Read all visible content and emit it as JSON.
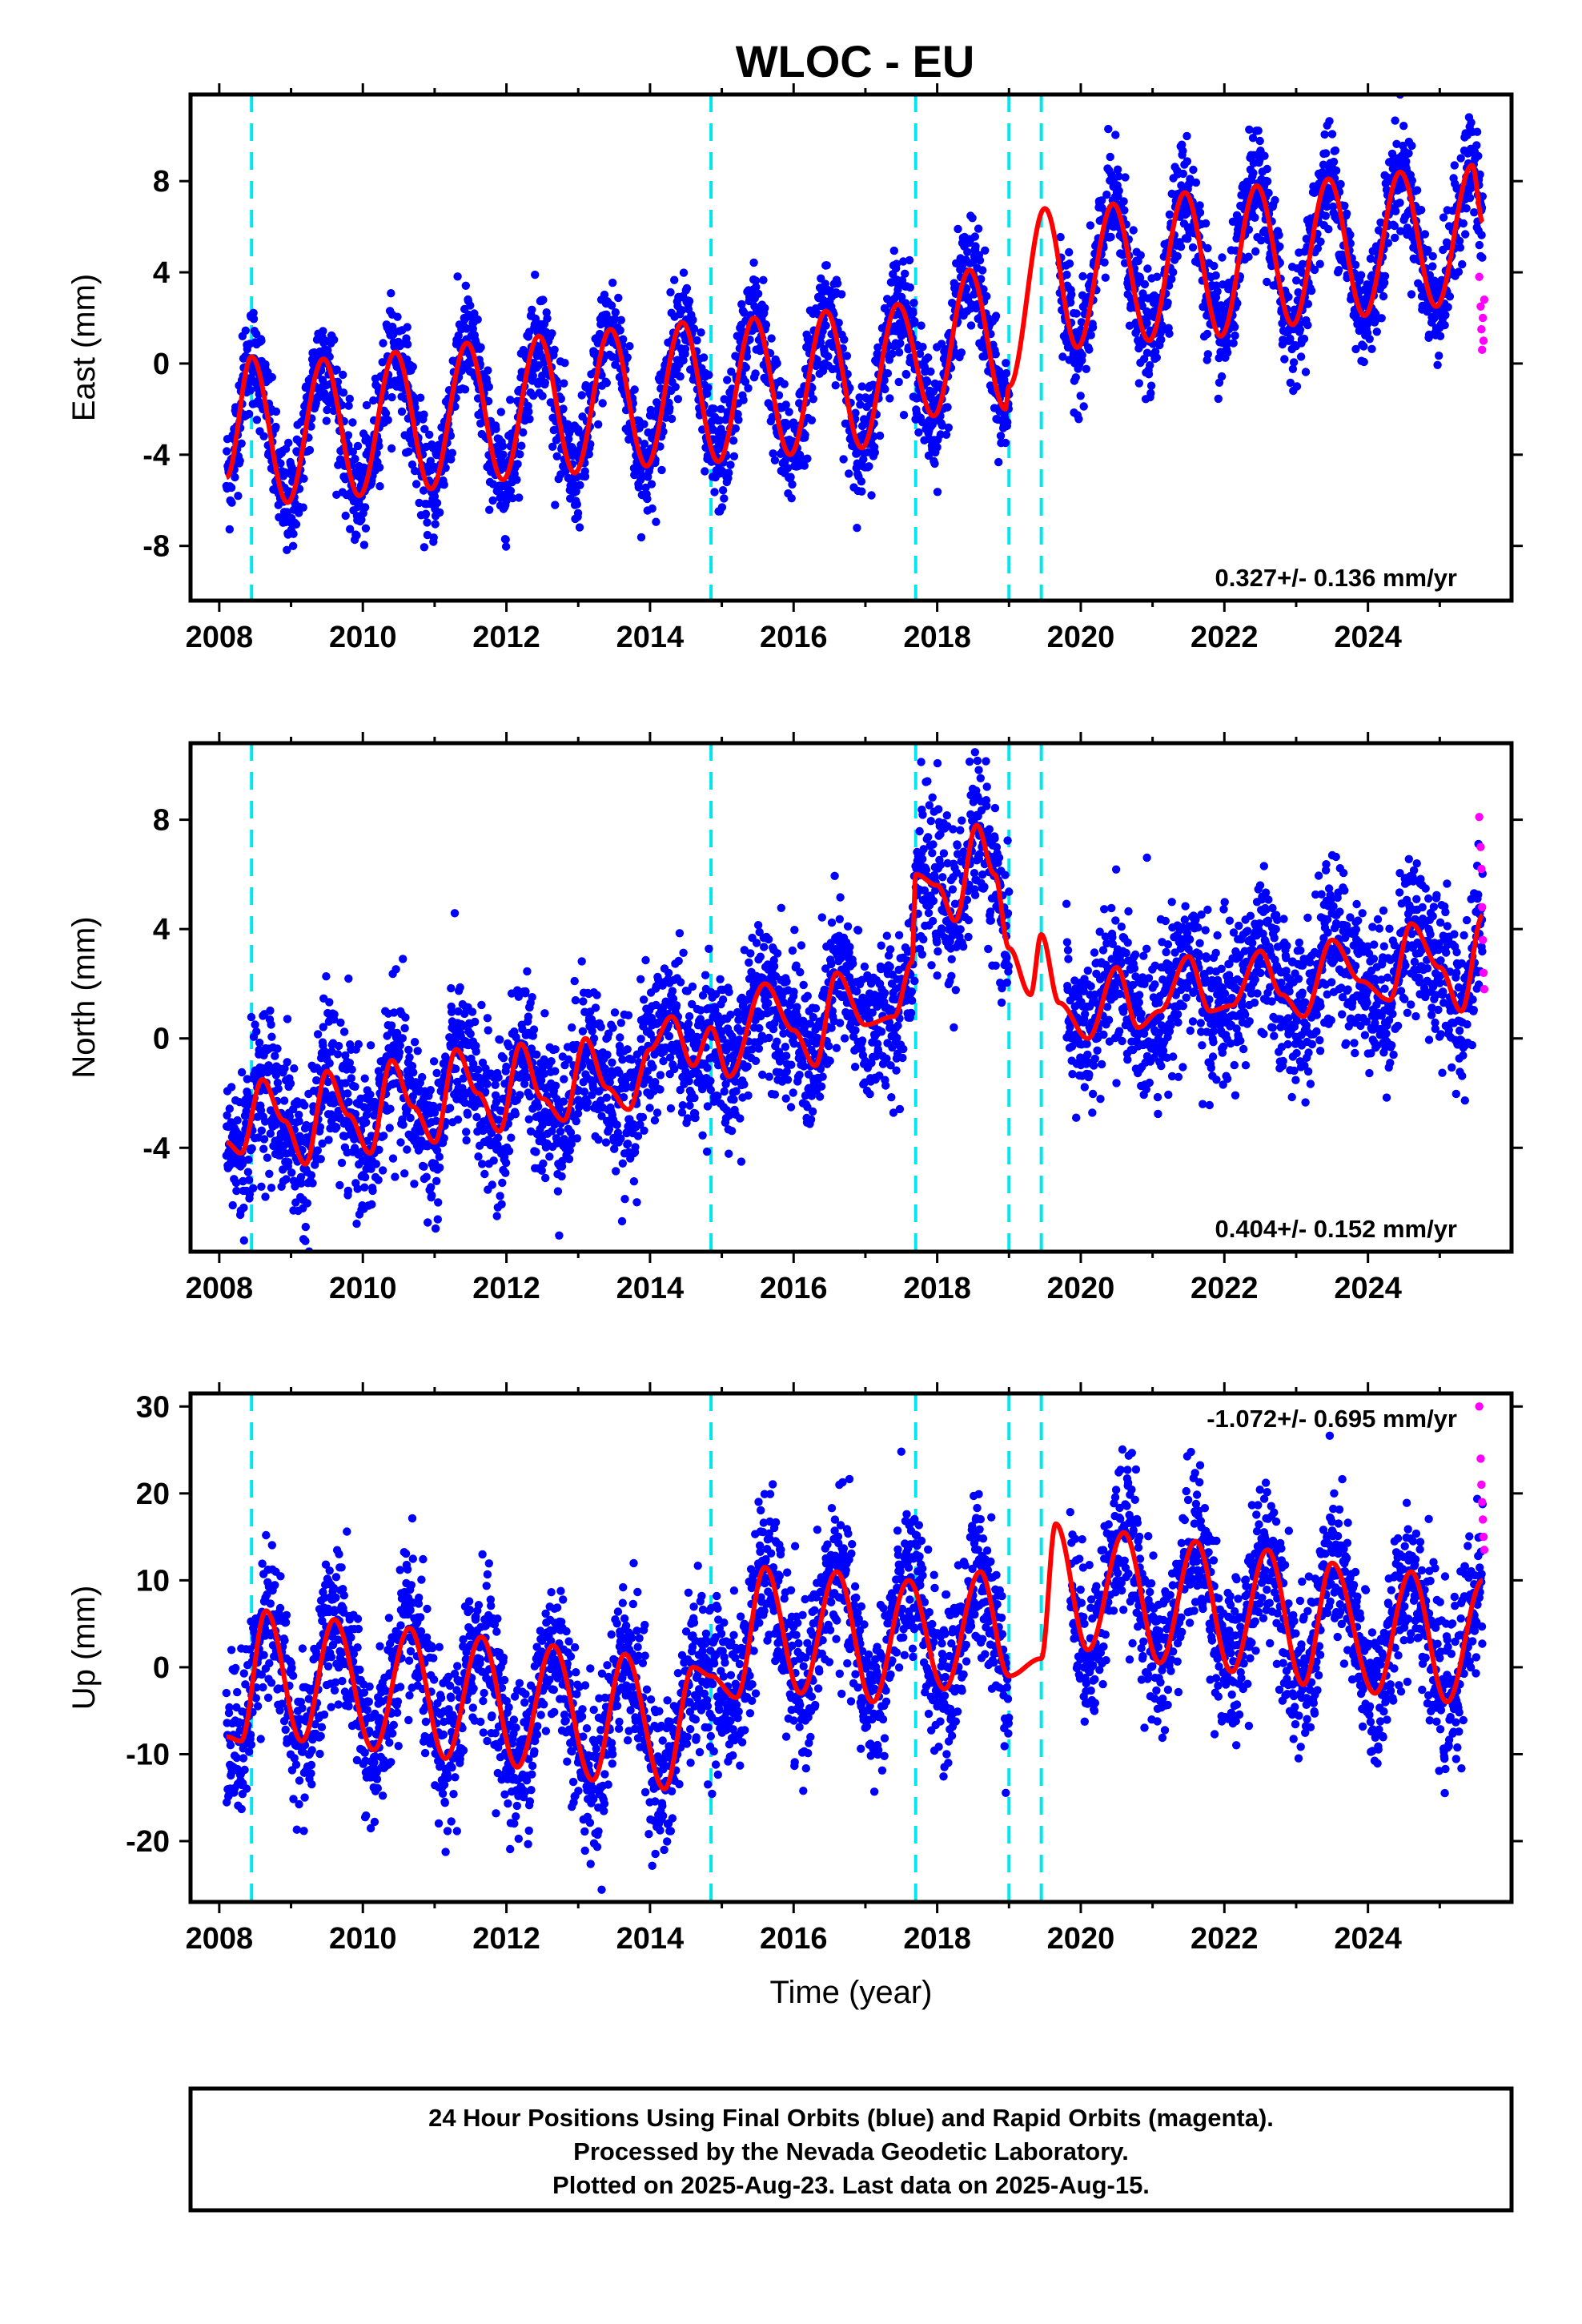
{
  "title": "WLOC - EU",
  "colors": {
    "final_orbits": "#0000ff",
    "rapid_orbits": "#ff00ff",
    "model": "#ff0000",
    "events": "#00e5ee",
    "frame": "#000000"
  },
  "footer": {
    "line1": "24 Hour Positions Using Final Orbits (blue) and Rapid Orbits (magenta).",
    "line2": "Processed by the Nevada Geodetic Laboratory.",
    "line3": "Plotted on 2025-Aug-23. Last data on 2025-Aug-15."
  },
  "chart_data": [
    {
      "type": "scatter",
      "id": "east",
      "ylabel": "East (mm)",
      "xlabel": "",
      "xlim": [
        2007.6,
        2026.0
      ],
      "ylim": [
        -10.4,
        11.8
      ],
      "xticks": [
        2008,
        2010,
        2012,
        2014,
        2016,
        2018,
        2020,
        2022,
        2024
      ],
      "yticks": [
        -8,
        -4,
        0,
        4,
        8
      ],
      "rate_text": "0.327+/- 0.136 mm/yr",
      "rate_position": "bottom-right",
      "event_lines": [
        2008.45,
        2014.85,
        2017.7,
        2019.0,
        2019.45
      ],
      "data_gap": [
        2019.0,
        2019.7
      ],
      "model_trend": {
        "offset": -2.8,
        "rate": 0.33,
        "start": 2008.0
      },
      "seasonal": {
        "amplitude": 3.4,
        "peak_phase": 0.45,
        "scatter": 1.2
      },
      "model_points": {
        "x": [
          2008.1,
          2008.45,
          2008.95,
          2009.45,
          2009.95,
          2010.45,
          2010.95,
          2011.45,
          2011.95,
          2012.45,
          2012.95,
          2013.45,
          2013.95,
          2014.45,
          2014.95,
          2015.45,
          2015.95,
          2016.45,
          2016.95,
          2017.45,
          2017.95,
          2018.45,
          2018.95,
          2019.0,
          2019.5,
          2019.95,
          2020.45,
          2020.95,
          2021.45,
          2021.95,
          2022.45,
          2022.95,
          2023.45,
          2023.95,
          2024.45,
          2024.95,
          2025.45,
          2025.6
        ],
        "y": [
          -5.0,
          0.3,
          -6.1,
          0.2,
          -5.8,
          0.5,
          -5.5,
          0.9,
          -5.1,
          1.2,
          -4.8,
          1.5,
          -4.5,
          1.8,
          -4.3,
          2.0,
          -4.0,
          2.3,
          -3.7,
          2.6,
          -2.3,
          4.1,
          -2.0,
          -1.0,
          6.8,
          0.7,
          7.0,
          1.0,
          7.5,
          1.2,
          7.8,
          1.7,
          8.1,
          2.1,
          8.4,
          2.5,
          8.7,
          6.2
        ]
      },
      "rapid_points": {
        "x": [
          2025.55,
          2025.57,
          2025.58,
          2025.59,
          2025.6,
          2025.61,
          2025.62
        ],
        "y": [
          3.8,
          2.5,
          1.5,
          0.6,
          2.0,
          1.0,
          2.8
        ]
      }
    },
    {
      "type": "scatter",
      "id": "north",
      "ylabel": "North (mm)",
      "xlabel": "",
      "xlim": [
        2007.6,
        2026.0
      ],
      "ylim": [
        -7.8,
        10.8
      ],
      "xticks": [
        2008,
        2010,
        2012,
        2014,
        2016,
        2018,
        2020,
        2022,
        2024
      ],
      "yticks": [
        -4,
        0,
        4,
        8
      ],
      "rate_text": "0.404+/- 0.152 mm/yr",
      "rate_position": "bottom-right",
      "event_lines": [
        2008.45,
        2014.85,
        2017.7,
        2019.0,
        2019.45
      ],
      "data_gap": [
        2019.0,
        2019.8
      ],
      "seasonal": {
        "amplitude": 1.4,
        "peak_phase": 0.55,
        "scatter": 1.4
      },
      "model_points": {
        "x": [
          2008.1,
          2008.3,
          2008.6,
          2008.9,
          2009.2,
          2009.5,
          2009.8,
          2010.1,
          2010.4,
          2010.7,
          2011.0,
          2011.3,
          2011.6,
          2011.9,
          2012.2,
          2012.5,
          2012.8,
          2013.1,
          2013.4,
          2013.7,
          2014.0,
          2014.3,
          2014.6,
          2014.85,
          2015.1,
          2015.6,
          2016.0,
          2016.3,
          2016.6,
          2017.0,
          2017.4,
          2017.65,
          2017.7,
          2018.0,
          2018.25,
          2018.55,
          2018.8,
          2019.0,
          2019.3,
          2019.45,
          2019.7,
          2020.1,
          2020.5,
          2020.8,
          2021.1,
          2021.5,
          2021.8,
          2022.1,
          2022.5,
          2022.8,
          2023.1,
          2023.5,
          2023.9,
          2024.3,
          2024.6,
          2025.0,
          2025.3,
          2025.6
        ],
        "y": [
          -3.8,
          -4.2,
          -1.5,
          -3.0,
          -4.6,
          -1.2,
          -2.8,
          -4.2,
          -0.8,
          -2.5,
          -3.8,
          -0.4,
          -2.0,
          -3.4,
          -0.2,
          -2.2,
          -3.0,
          0.0,
          -1.8,
          -2.6,
          -0.4,
          0.8,
          -1.0,
          0.4,
          -1.4,
          2.0,
          0.3,
          -1.0,
          2.4,
          0.5,
          0.8,
          2.8,
          6.0,
          5.6,
          4.3,
          7.8,
          6.0,
          3.3,
          1.6,
          3.8,
          1.3,
          0.0,
          2.6,
          0.4,
          1.0,
          3.0,
          1.0,
          1.2,
          3.2,
          1.6,
          0.8,
          3.6,
          2.1,
          1.4,
          4.2,
          2.6,
          1.0,
          4.5
        ]
      },
      "rapid_points": {
        "x": [
          2025.55,
          2025.57,
          2025.58,
          2025.59,
          2025.6,
          2025.61,
          2025.62
        ],
        "y": [
          8.1,
          7.0,
          6.2,
          4.8,
          3.6,
          2.4,
          1.8
        ]
      }
    },
    {
      "type": "scatter",
      "id": "up",
      "ylabel": "Up (mm)",
      "xlabel": "Time (year)",
      "xlim": [
        2007.6,
        2026.0
      ],
      "ylim": [
        -27.0,
        31.5
      ],
      "xticks": [
        2008,
        2010,
        2012,
        2014,
        2016,
        2018,
        2020,
        2022,
        2024
      ],
      "yticks": [
        -20,
        -10,
        0,
        10,
        20,
        30
      ],
      "rate_text": "-1.072+/- 0.695 mm/yr",
      "rate_position": "top-right",
      "event_lines": [
        2008.45,
        2014.85,
        2017.7,
        2019.0,
        2019.45
      ],
      "data_gap": [
        2019.0,
        2019.85
      ],
      "seasonal": {
        "amplitude": 10.0,
        "peak_phase": 0.6,
        "scatter": 4.5
      },
      "model_points": {
        "x": [
          2008.1,
          2008.3,
          2008.65,
          2009.15,
          2009.6,
          2010.15,
          2010.65,
          2011.15,
          2011.65,
          2012.15,
          2012.65,
          2013.2,
          2013.65,
          2014.2,
          2014.6,
          2014.85,
          2015.2,
          2015.6,
          2016.1,
          2016.6,
          2017.1,
          2017.6,
          2018.1,
          2018.6,
          2019.0,
          2019.45,
          2019.65,
          2020.1,
          2020.6,
          2021.1,
          2021.6,
          2022.1,
          2022.6,
          2023.1,
          2023.5,
          2024.1,
          2024.6,
          2025.1,
          2025.6
        ],
        "y": [
          -8.0,
          -8.5,
          6.5,
          -8.5,
          5.5,
          -9.5,
          4.5,
          -10.5,
          3.5,
          -11.5,
          2.5,
          -13.0,
          1.5,
          -14.0,
          0.0,
          -1.0,
          -3.5,
          11.5,
          -3.0,
          11.0,
          -4.0,
          10.0,
          -2.5,
          11.0,
          -1.0,
          1.0,
          16.5,
          2.0,
          15.5,
          0.5,
          14.5,
          -0.5,
          13.5,
          -2.0,
          12.0,
          -3.0,
          11.0,
          -4.0,
          10.0
        ]
      },
      "rapid_points": {
        "x": [
          2025.55,
          2025.57,
          2025.58,
          2025.59,
          2025.6,
          2025.61,
          2025.62
        ],
        "y": [
          30.0,
          24.0,
          21.0,
          19.0,
          17.0,
          15.0,
          13.5
        ]
      }
    }
  ]
}
